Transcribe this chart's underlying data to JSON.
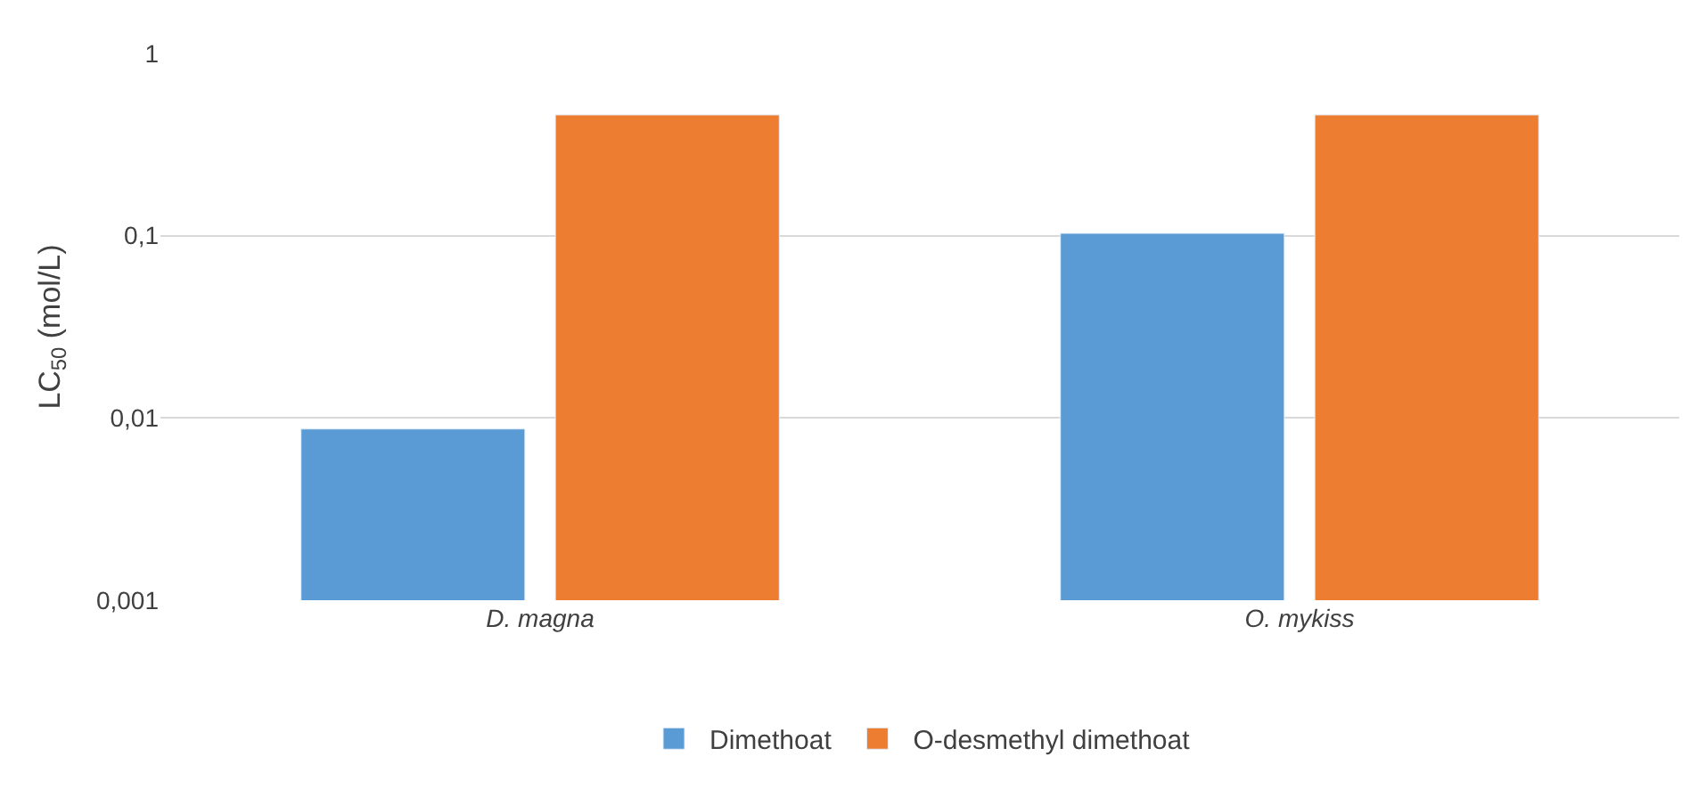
{
  "chart_data": {
    "type": "bar",
    "ylabel": "LC$_{50}$ (mol/L)",
    "categories": [
      "D. magna",
      "O. mykiss"
    ],
    "series": [
      {
        "name": "Dimethoat",
        "color": "#5b9bd5",
        "values": [
          0.0087,
          0.103
        ]
      },
      {
        "name": "O-desmethyl dimethoat",
        "color": "#ed7d31",
        "values": [
          0.46,
          0.46
        ]
      }
    ],
    "log": true,
    "ylim": [
      0.001,
      1
    ],
    "yticks": [
      {
        "value": 0.001,
        "label": "0,001"
      },
      {
        "value": 0.01,
        "label": "0,01"
      },
      {
        "value": 0.1,
        "label": "0,1"
      },
      1
    ],
    "grid": "y",
    "legend": "bottom"
  }
}
